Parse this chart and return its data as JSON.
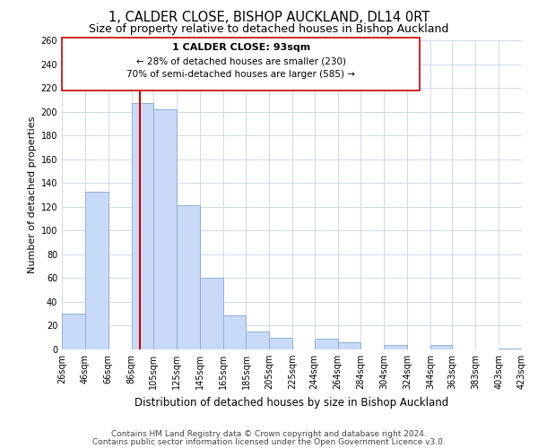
{
  "title": "1, CALDER CLOSE, BISHOP AUCKLAND, DL14 0RT",
  "subtitle": "Size of property relative to detached houses in Bishop Auckland",
  "xlabel": "Distribution of detached houses by size in Bishop Auckland",
  "ylabel": "Number of detached properties",
  "bar_left_edges": [
    26,
    46,
    66,
    86,
    105,
    125,
    145,
    165,
    185,
    205,
    225,
    244,
    264,
    284,
    304,
    324,
    344,
    363,
    383,
    403
  ],
  "bar_widths": [
    20,
    20,
    20,
    19,
    20,
    20,
    20,
    20,
    20,
    20,
    19,
    20,
    20,
    20,
    20,
    20,
    19,
    20,
    20,
    20
  ],
  "bar_heights": [
    30,
    133,
    0,
    207,
    202,
    121,
    60,
    29,
    15,
    10,
    0,
    9,
    6,
    0,
    4,
    0,
    4,
    0,
    0,
    1
  ],
  "bar_color": "#c9daf8",
  "bar_edge_color": "#8eafd8",
  "vline_x": 93,
  "vline_color": "#cc0000",
  "annotation_text_line1": "1 CALDER CLOSE: 93sqm",
  "annotation_text_line2": "← 28% of detached houses are smaller (230)",
  "annotation_text_line3": "70% of semi-detached houses are larger (585) →",
  "box_color": "#ffffff",
  "box_edge_color": "#cc0000",
  "tick_labels": [
    "26sqm",
    "46sqm",
    "66sqm",
    "86sqm",
    "105sqm",
    "125sqm",
    "145sqm",
    "165sqm",
    "185sqm",
    "205sqm",
    "225sqm",
    "244sqm",
    "264sqm",
    "284sqm",
    "304sqm",
    "324sqm",
    "344sqm",
    "363sqm",
    "383sqm",
    "403sqm",
    "423sqm"
  ],
  "xlim": [
    26,
    423
  ],
  "ylim": [
    0,
    260
  ],
  "yticks": [
    0,
    20,
    40,
    60,
    80,
    100,
    120,
    140,
    160,
    180,
    200,
    220,
    240,
    260
  ],
  "footer1": "Contains HM Land Registry data © Crown copyright and database right 2024.",
  "footer2": "Contains public sector information licensed under the Open Government Licence v3.0.",
  "bg_color": "#ffffff",
  "grid_color": "#d0d8e8",
  "title_fontsize": 10.5,
  "subtitle_fontsize": 9,
  "xlabel_fontsize": 8.5,
  "ylabel_fontsize": 8,
  "tick_fontsize": 7,
  "annotation_fontsize": 8,
  "footer_fontsize": 6.5
}
